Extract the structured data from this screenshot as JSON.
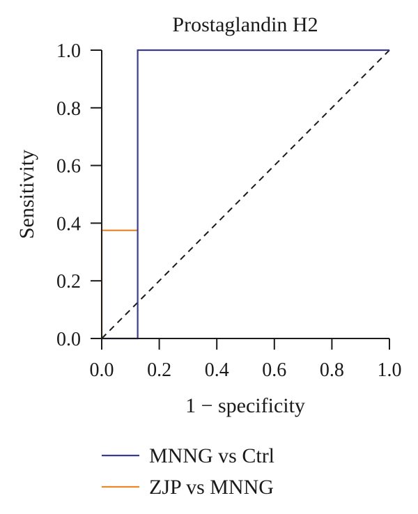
{
  "chart_data": {
    "type": "line",
    "title": "Prostaglandin H2",
    "xlabel": "1 − specificity",
    "ylabel": "Sensitivity",
    "xlim": [
      0,
      1
    ],
    "ylim": [
      0,
      1
    ],
    "x_ticks": [
      0.0,
      0.2,
      0.4,
      0.6,
      0.8,
      1.0
    ],
    "y_ticks": [
      0.0,
      0.2,
      0.4,
      0.6,
      0.8,
      1.0
    ],
    "x_tick_labels": [
      "0.0",
      "0.2",
      "0.4",
      "0.6",
      "0.8",
      "1.0"
    ],
    "y_tick_labels": [
      "0.0",
      "0.2",
      "0.4",
      "0.6",
      "0.8",
      "1.0"
    ],
    "grid": false,
    "legend_position": "bottom",
    "series": [
      {
        "name": "MNNG vs Ctrl",
        "color": "#3b3a8f",
        "x": [
          0.0,
          0.125,
          0.125,
          1.0
        ],
        "y": [
          0.0,
          0.0,
          1.0,
          1.0
        ]
      },
      {
        "name": "ZJP vs MNNG",
        "color": "#e8892b",
        "x": [
          0.0,
          0.0,
          0.125
        ],
        "y": [
          0.0,
          0.375,
          0.375
        ]
      }
    ],
    "reference_line": {
      "style": "dashed",
      "color": "#1a1a1a",
      "x": [
        0,
        1
      ],
      "y": [
        0,
        1
      ]
    }
  }
}
